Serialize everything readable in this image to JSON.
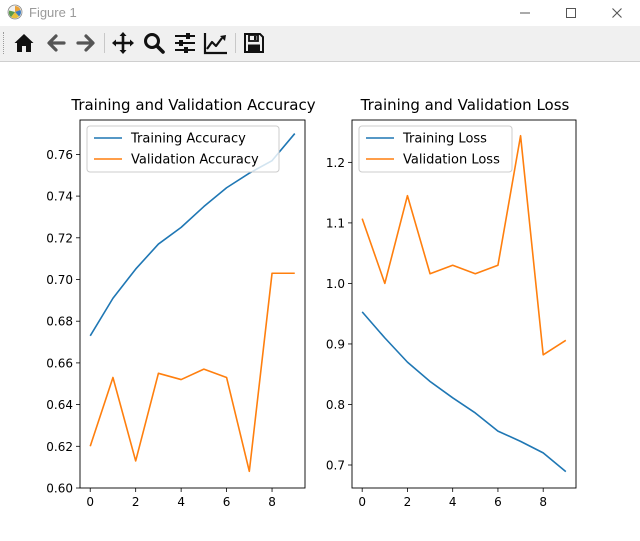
{
  "window": {
    "title": "Figure 1"
  },
  "toolbar": {
    "tools": [
      "home-icon",
      "back-arrow-icon",
      "forward-arrow-icon",
      "pan-icon",
      "zoom-icon",
      "configure-subplots-icon",
      "edit-axis-icon",
      "save-icon"
    ]
  },
  "colors": {
    "training": "#1f77b4",
    "validation": "#ff7f0e"
  },
  "chart_data": [
    {
      "type": "line",
      "title": "Training and Validation Accuracy",
      "x": [
        0,
        1,
        2,
        3,
        4,
        5,
        6,
        7,
        8,
        9
      ],
      "xlim": [
        -0.45,
        9.45
      ],
      "ylim": [
        0.6,
        0.7765
      ],
      "xticks": [
        0,
        2,
        4,
        6,
        8
      ],
      "xtick_labels": [
        "0",
        "2",
        "4",
        "6",
        "8"
      ],
      "yticks": [
        0.6,
        0.62,
        0.64,
        0.66,
        0.68,
        0.7,
        0.72,
        0.74,
        0.76
      ],
      "ytick_labels": [
        "0.60",
        "0.62",
        "0.64",
        "0.66",
        "0.68",
        "0.70",
        "0.72",
        "0.74",
        "0.76"
      ],
      "legend_loc": "upper left",
      "series": [
        {
          "name": "Training Accuracy",
          "color": "#1f77b4",
          "values": [
            0.673,
            0.691,
            0.705,
            0.717,
            0.725,
            0.735,
            0.744,
            0.751,
            0.757,
            0.77
          ]
        },
        {
          "name": "Validation Accuracy",
          "color": "#ff7f0e",
          "values": [
            0.62,
            0.653,
            0.613,
            0.655,
            0.652,
            0.657,
            0.653,
            0.608,
            0.703,
            0.703
          ]
        }
      ]
    },
    {
      "type": "line",
      "title": "Training and Validation Loss",
      "x": [
        0,
        1,
        2,
        3,
        4,
        5,
        6,
        7,
        8,
        9
      ],
      "xlim": [
        -0.45,
        9.45
      ],
      "ylim": [
        0.662,
        1.27
      ],
      "xticks": [
        0,
        2,
        4,
        6,
        8
      ],
      "xtick_labels": [
        "0",
        "2",
        "4",
        "6",
        "8"
      ],
      "yticks": [
        0.7,
        0.8,
        0.9,
        1.0,
        1.1,
        1.2
      ],
      "ytick_labels": [
        "0.7",
        "0.8",
        "0.9",
        "1.0",
        "1.1",
        "1.2"
      ],
      "legend_loc": "upper left",
      "series": [
        {
          "name": "Training Loss",
          "color": "#1f77b4",
          "values": [
            0.953,
            0.91,
            0.87,
            0.838,
            0.811,
            0.786,
            0.756,
            0.739,
            0.72,
            0.689
          ]
        },
        {
          "name": "Validation Loss",
          "color": "#ff7f0e",
          "values": [
            1.107,
            1.0,
            1.145,
            1.016,
            1.03,
            1.016,
            1.03,
            1.244,
            0.882,
            0.906
          ]
        }
      ]
    }
  ]
}
